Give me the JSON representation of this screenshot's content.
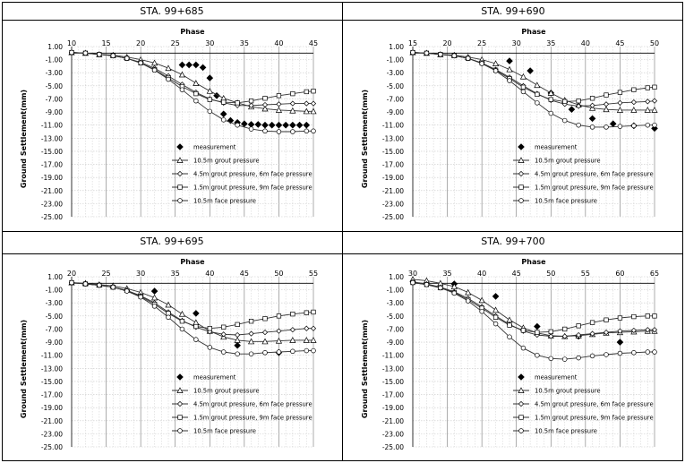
{
  "chart_data": [
    {
      "type": "line",
      "title": "STA. 99+685",
      "xlabel": "Phase",
      "ylabel": "Ground Settlement(mm)",
      "xlim": [
        10,
        45
      ],
      "xticks": [
        10,
        15,
        20,
        25,
        30,
        35,
        40,
        45
      ],
      "ylim": [
        -25,
        1
      ],
      "yticks": [
        "1.00",
        "-1.00",
        "-3.00",
        "-5.00",
        "-7.00",
        "-9.00",
        "-11.00",
        "-13.00",
        "-15.00",
        "-17.00",
        "-19.00",
        "-21.00",
        "-23.00",
        "-25.00"
      ],
      "legend_position": "lower-center",
      "series": [
        {
          "name": "measurement",
          "marker": "diamond-filled",
          "line": false,
          "x": [
            26,
            27,
            28,
            29,
            30,
            31,
            32,
            33,
            34,
            35,
            36,
            37,
            38,
            39,
            40,
            41,
            42,
            43,
            44
          ],
          "y": [
            -1.8,
            -1.8,
            -1.8,
            -2.2,
            -3.8,
            -6.5,
            -9.3,
            -10.3,
            -10.6,
            -10.8,
            -10.9,
            -10.9,
            -11.0,
            -11.0,
            -11.0,
            -11.0,
            -11.0,
            -11.0,
            -11.0
          ]
        },
        {
          "name": "10.5m grout pressure",
          "marker": "triangle",
          "x": [
            10,
            12,
            14,
            16,
            18,
            20,
            22,
            24,
            26,
            28,
            30,
            32,
            34,
            36,
            38,
            40,
            42,
            44,
            45
          ],
          "y": [
            0.1,
            0.0,
            -0.2,
            -0.3,
            -0.6,
            -1.0,
            -1.5,
            -2.3,
            -3.3,
            -4.6,
            -5.8,
            -6.9,
            -7.6,
            -8.2,
            -8.5,
            -8.7,
            -8.8,
            -8.9,
            -8.9
          ]
        },
        {
          "name": "4.5m grout pressure, 6m face pressure",
          "marker": "diamond",
          "x": [
            10,
            12,
            14,
            16,
            18,
            20,
            22,
            24,
            26,
            28,
            30,
            32,
            34,
            36,
            38,
            40,
            42,
            44,
            45
          ],
          "y": [
            0.1,
            0.0,
            -0.2,
            -0.4,
            -0.8,
            -1.4,
            -2.3,
            -3.5,
            -4.8,
            -6.0,
            -7.0,
            -7.6,
            -8.0,
            -8.0,
            -7.9,
            -7.8,
            -7.7,
            -7.7,
            -7.7
          ]
        },
        {
          "name": "1.5m grout pressure, 9m face pressure",
          "marker": "square",
          "x": [
            10,
            12,
            14,
            16,
            18,
            20,
            22,
            24,
            26,
            28,
            30,
            32,
            34,
            36,
            38,
            40,
            42,
            44,
            45
          ],
          "y": [
            0.1,
            0.0,
            -0.2,
            -0.4,
            -0.8,
            -1.5,
            -2.5,
            -3.8,
            -5.1,
            -6.2,
            -7.1,
            -7.5,
            -7.6,
            -7.3,
            -6.9,
            -6.5,
            -6.2,
            -5.9,
            -5.8
          ]
        },
        {
          "name": "10.5m face pressure",
          "marker": "circle",
          "x": [
            10,
            12,
            14,
            16,
            18,
            20,
            22,
            24,
            26,
            28,
            30,
            32,
            34,
            36,
            38,
            40,
            42,
            44,
            45
          ],
          "y": [
            0.1,
            0.0,
            -0.2,
            -0.4,
            -0.8,
            -1.5,
            -2.6,
            -4.0,
            -5.6,
            -7.3,
            -8.9,
            -10.2,
            -11.0,
            -11.6,
            -11.9,
            -12.0,
            -12.0,
            -11.9,
            -11.9
          ]
        }
      ]
    },
    {
      "type": "line",
      "title": "STA. 99+690",
      "xlabel": "Phase",
      "ylabel": "Ground Settlement(mm)",
      "xlim": [
        15,
        50
      ],
      "xticks": [
        15,
        20,
        25,
        30,
        35,
        40,
        45,
        50
      ],
      "ylim": [
        -25,
        1
      ],
      "yticks": [
        "1.00",
        "-1.00",
        "-3.00",
        "-5.00",
        "-7.00",
        "-9.00",
        "-11.00",
        "-13.00",
        "-15.00",
        "-17.00",
        "-19.00",
        "-21.00",
        "-23.00",
        "-25.00"
      ],
      "legend_position": "lower-center",
      "series": [
        {
          "name": "measurement",
          "marker": "diamond-filled",
          "line": false,
          "x": [
            29,
            32,
            35,
            38,
            41,
            44,
            47,
            50
          ],
          "y": [
            -1.2,
            -2.7,
            -6.1,
            -8.6,
            -10.0,
            -10.8,
            -11.1,
            -11.5
          ]
        },
        {
          "name": "10.5m grout pressure",
          "marker": "triangle",
          "x": [
            15,
            17,
            19,
            21,
            23,
            25,
            27,
            29,
            31,
            33,
            35,
            37,
            39,
            41,
            43,
            45,
            47,
            49,
            50
          ],
          "y": [
            0.1,
            0.0,
            -0.2,
            -0.3,
            -0.6,
            -1.0,
            -1.6,
            -2.5,
            -3.6,
            -4.9,
            -6.1,
            -7.2,
            -7.9,
            -8.4,
            -8.6,
            -8.7,
            -8.7,
            -8.7,
            -8.7
          ]
        },
        {
          "name": "4.5m grout pressure, 6m face pressure",
          "marker": "diamond",
          "x": [
            15,
            17,
            19,
            21,
            23,
            25,
            27,
            29,
            31,
            33,
            35,
            37,
            39,
            41,
            43,
            45,
            47,
            49,
            50
          ],
          "y": [
            0.1,
            0.0,
            -0.2,
            -0.4,
            -0.8,
            -1.5,
            -2.5,
            -3.7,
            -5.0,
            -6.2,
            -7.2,
            -7.8,
            -8.1,
            -8.0,
            -7.8,
            -7.6,
            -7.5,
            -7.4,
            -7.3
          ]
        },
        {
          "name": "1.5m grout pressure, 9m face pressure",
          "marker": "square",
          "x": [
            15,
            17,
            19,
            21,
            23,
            25,
            27,
            29,
            31,
            33,
            35,
            37,
            39,
            41,
            43,
            45,
            47,
            49,
            50
          ],
          "y": [
            0.1,
            0.0,
            -0.2,
            -0.4,
            -0.8,
            -1.5,
            -2.6,
            -3.9,
            -5.2,
            -6.3,
            -7.1,
            -7.4,
            -7.3,
            -6.9,
            -6.4,
            -6.0,
            -5.6,
            -5.3,
            -5.2
          ]
        },
        {
          "name": "10.5m face pressure",
          "marker": "circle",
          "x": [
            15,
            17,
            19,
            21,
            23,
            25,
            27,
            29,
            31,
            33,
            35,
            37,
            39,
            41,
            43,
            45,
            47,
            49,
            50
          ],
          "y": [
            0.1,
            0.0,
            -0.2,
            -0.4,
            -0.8,
            -1.6,
            -2.7,
            -4.2,
            -5.9,
            -7.6,
            -9.2,
            -10.3,
            -11.0,
            -11.3,
            -11.3,
            -11.2,
            -11.1,
            -11.0,
            -11.0
          ]
        }
      ]
    },
    {
      "type": "line",
      "title": "STA. 99+695",
      "xlabel": "Phase",
      "ylabel": "Ground Settlement(mm)",
      "xlim": [
        20,
        55
      ],
      "xticks": [
        20,
        25,
        30,
        35,
        40,
        45,
        50,
        55
      ],
      "ylim": [
        -25,
        1
      ],
      "yticks": [
        "1.00",
        "-1.00",
        "-3.00",
        "-5.00",
        "-7.00",
        "-9.00",
        "-11.00",
        "-13.00",
        "-15.00",
        "-17.00",
        "-19.00",
        "-21.00",
        "-23.00",
        "-25.00"
      ],
      "legend_position": "lower-center",
      "series": [
        {
          "name": "measurement",
          "marker": "diamond-filled",
          "line": false,
          "x": [
            32,
            38,
            44,
            50
          ],
          "y": [
            -1.2,
            -4.6,
            -9.5,
            -10.6
          ]
        },
        {
          "name": "10.5m grout pressure",
          "marker": "triangle",
          "x": [
            20,
            22,
            24,
            26,
            28,
            30,
            32,
            34,
            36,
            38,
            40,
            42,
            44,
            46,
            48,
            50,
            52,
            54,
            55
          ],
          "y": [
            0.1,
            0.0,
            -0.2,
            -0.4,
            -0.8,
            -1.4,
            -2.2,
            -3.3,
            -4.7,
            -6.0,
            -7.3,
            -8.2,
            -8.7,
            -8.9,
            -8.9,
            -8.8,
            -8.7,
            -8.7,
            -8.7
          ]
        },
        {
          "name": "4.5m grout pressure, 6m face pressure",
          "marker": "diamond",
          "x": [
            20,
            22,
            24,
            26,
            28,
            30,
            32,
            34,
            36,
            38,
            40,
            42,
            44,
            46,
            48,
            50,
            52,
            54,
            55
          ],
          "y": [
            0.1,
            -0.1,
            -0.3,
            -0.6,
            -1.1,
            -1.9,
            -3.0,
            -4.4,
            -5.7,
            -6.7,
            -7.4,
            -7.8,
            -7.9,
            -7.7,
            -7.5,
            -7.3,
            -7.1,
            -6.9,
            -6.9
          ]
        },
        {
          "name": "1.5m grout pressure, 9m face pressure",
          "marker": "square",
          "x": [
            20,
            22,
            24,
            26,
            28,
            30,
            32,
            34,
            36,
            38,
            40,
            42,
            44,
            46,
            48,
            50,
            52,
            54,
            55
          ],
          "y": [
            0.1,
            -0.1,
            -0.3,
            -0.6,
            -1.1,
            -2.0,
            -3.2,
            -4.6,
            -5.8,
            -6.6,
            -6.9,
            -6.7,
            -6.3,
            -5.8,
            -5.4,
            -5.0,
            -4.7,
            -4.5,
            -4.4
          ]
        },
        {
          "name": "10.5m face pressure",
          "marker": "circle",
          "x": [
            20,
            22,
            24,
            26,
            28,
            30,
            32,
            34,
            36,
            38,
            40,
            42,
            44,
            46,
            48,
            50,
            52,
            54,
            55
          ],
          "y": [
            0.1,
            -0.1,
            -0.3,
            -0.6,
            -1.2,
            -2.1,
            -3.5,
            -5.2,
            -7.0,
            -8.6,
            -9.8,
            -10.5,
            -10.8,
            -10.8,
            -10.6,
            -10.5,
            -10.4,
            -10.3,
            -10.3
          ]
        }
      ]
    },
    {
      "type": "line",
      "title": "STA. 99+700",
      "xlabel": "Phase",
      "ylabel": "Ground Settlement(mm)",
      "xlim": [
        30,
        65
      ],
      "xticks": [
        30,
        35,
        40,
        45,
        50,
        55,
        60,
        65
      ],
      "ylim": [
        -25,
        1
      ],
      "yticks": [
        "1.00",
        "-1.00",
        "-3.00",
        "-5.00",
        "-7.00",
        "-9.00",
        "-11.00",
        "-13.00",
        "-15.00",
        "-17.00",
        "-19.00",
        "-21.00",
        "-23.00",
        "-25.00"
      ],
      "legend_position": "lower-center",
      "series": [
        {
          "name": "measurement",
          "marker": "diamond-filled",
          "line": false,
          "x": [
            36,
            42,
            48,
            54,
            60
          ],
          "y": [
            -0.1,
            -2.0,
            -6.6,
            -8.1,
            -9.0
          ]
        },
        {
          "name": "10.5m grout pressure",
          "marker": "triangle",
          "x": [
            30,
            32,
            34,
            36,
            38,
            40,
            42,
            44,
            46,
            48,
            50,
            52,
            54,
            56,
            58,
            60,
            62,
            64,
            65
          ],
          "y": [
            0.6,
            0.4,
            0.0,
            -0.5,
            -1.4,
            -2.6,
            -4.1,
            -5.6,
            -6.8,
            -7.6,
            -8.0,
            -8.1,
            -8.0,
            -7.8,
            -7.6,
            -7.5,
            -7.4,
            -7.3,
            -7.3
          ]
        },
        {
          "name": "4.5m grout pressure, 6m face pressure",
          "marker": "diamond",
          "x": [
            30,
            32,
            34,
            36,
            38,
            40,
            42,
            44,
            46,
            48,
            50,
            52,
            54,
            56,
            58,
            60,
            62,
            64,
            65
          ],
          "y": [
            0.2,
            -0.1,
            -0.6,
            -1.3,
            -2.3,
            -3.6,
            -5.0,
            -6.3,
            -7.3,
            -7.9,
            -8.1,
            -8.1,
            -7.9,
            -7.7,
            -7.5,
            -7.3,
            -7.2,
            -7.1,
            -7.1
          ]
        },
        {
          "name": "1.5m grout pressure, 9m face pressure",
          "marker": "square",
          "x": [
            30,
            32,
            34,
            36,
            38,
            40,
            42,
            44,
            46,
            48,
            50,
            52,
            54,
            56,
            58,
            60,
            62,
            64,
            65
          ],
          "y": [
            0.1,
            -0.2,
            -0.7,
            -1.4,
            -2.5,
            -3.8,
            -5.2,
            -6.4,
            -7.2,
            -7.5,
            -7.4,
            -7.0,
            -6.5,
            -6.0,
            -5.6,
            -5.3,
            -5.1,
            -5.0,
            -5.0
          ]
        },
        {
          "name": "10.5m face pressure",
          "marker": "circle",
          "x": [
            30,
            32,
            34,
            36,
            38,
            40,
            42,
            44,
            46,
            48,
            50,
            52,
            54,
            56,
            58,
            60,
            62,
            64,
            65
          ],
          "y": [
            0.1,
            -0.2,
            -0.7,
            -1.5,
            -2.7,
            -4.3,
            -6.2,
            -8.2,
            -9.9,
            -11.0,
            -11.5,
            -11.6,
            -11.4,
            -11.1,
            -10.9,
            -10.7,
            -10.6,
            -10.5,
            -10.5
          ]
        }
      ]
    }
  ]
}
